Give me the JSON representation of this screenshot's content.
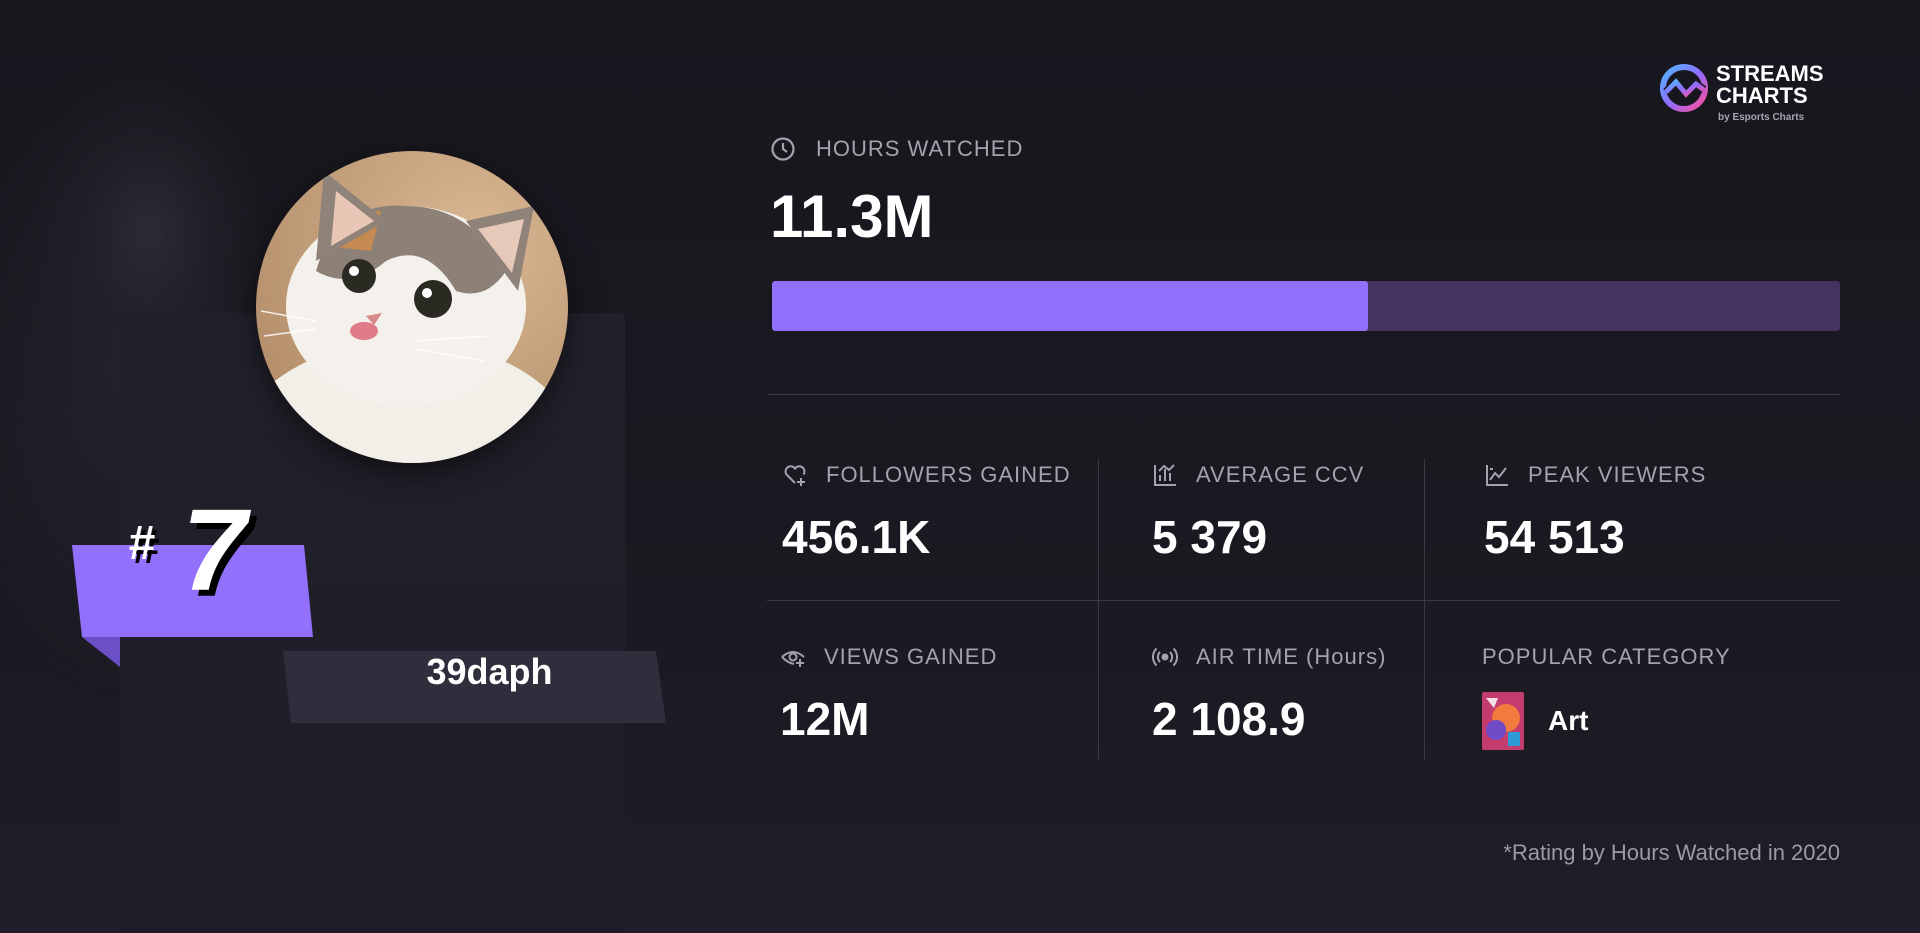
{
  "brand": {
    "title": "STREAMS\nCHARTS",
    "subtitle": "by Esports Charts",
    "logo_icon": "streams-charts-logo",
    "accent": "#9370fb"
  },
  "streamer": {
    "rank_symbol": "#",
    "rank": "7",
    "name": "39daph",
    "avatar_icon": "cat-avatar"
  },
  "hours_watched": {
    "label": "HOURS WATCHED",
    "icon": "clock-icon",
    "value": "11.3M",
    "bar_fraction": 0.558
  },
  "stats": {
    "followers_gained": {
      "label": "FOLLOWERS GAINED",
      "icon": "heart-plus-icon",
      "value": "456.1K"
    },
    "average_ccv": {
      "label": "AVERAGE CCV",
      "icon": "bar-chart-icon",
      "value": "5 379"
    },
    "peak_viewers": {
      "label": "PEAK VIEWERS",
      "icon": "line-chart-icon",
      "value": "54 513"
    },
    "views_gained": {
      "label": "VIEWS GAINED",
      "icon": "eye-plus-icon",
      "value": "12M"
    },
    "air_time": {
      "label": "AIR TIME (Hours)",
      "icon": "broadcast-icon",
      "value": "2 108.9"
    },
    "popular_category": {
      "label": "POPULAR CATEGORY",
      "value": "Art",
      "thumb_icon": "art-category-thumbnail"
    }
  },
  "footnote": "*Rating by Hours Watched in 2020"
}
